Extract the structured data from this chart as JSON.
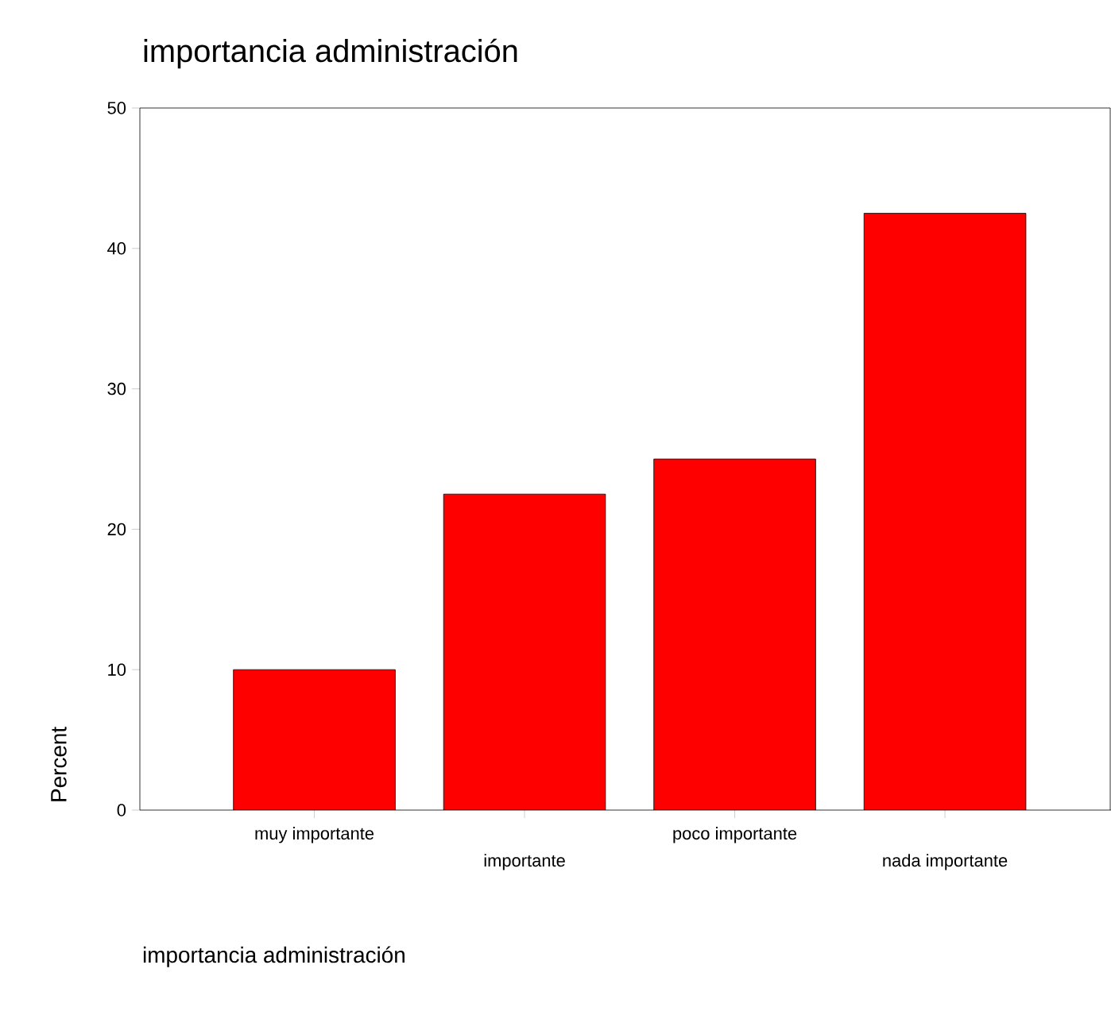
{
  "chart_data": {
    "type": "bar",
    "title": "importancia administración",
    "xlabel": "importancia administración",
    "ylabel": "Percent",
    "categories": [
      "muy importante",
      "importante",
      "poco importante",
      "nada importante"
    ],
    "values": [
      10,
      22.5,
      25,
      42.5
    ],
    "color": "#ff0000",
    "ylim": [
      0,
      50
    ],
    "yticks": [
      0,
      10,
      20,
      30,
      40,
      50
    ],
    "grid": false
  }
}
